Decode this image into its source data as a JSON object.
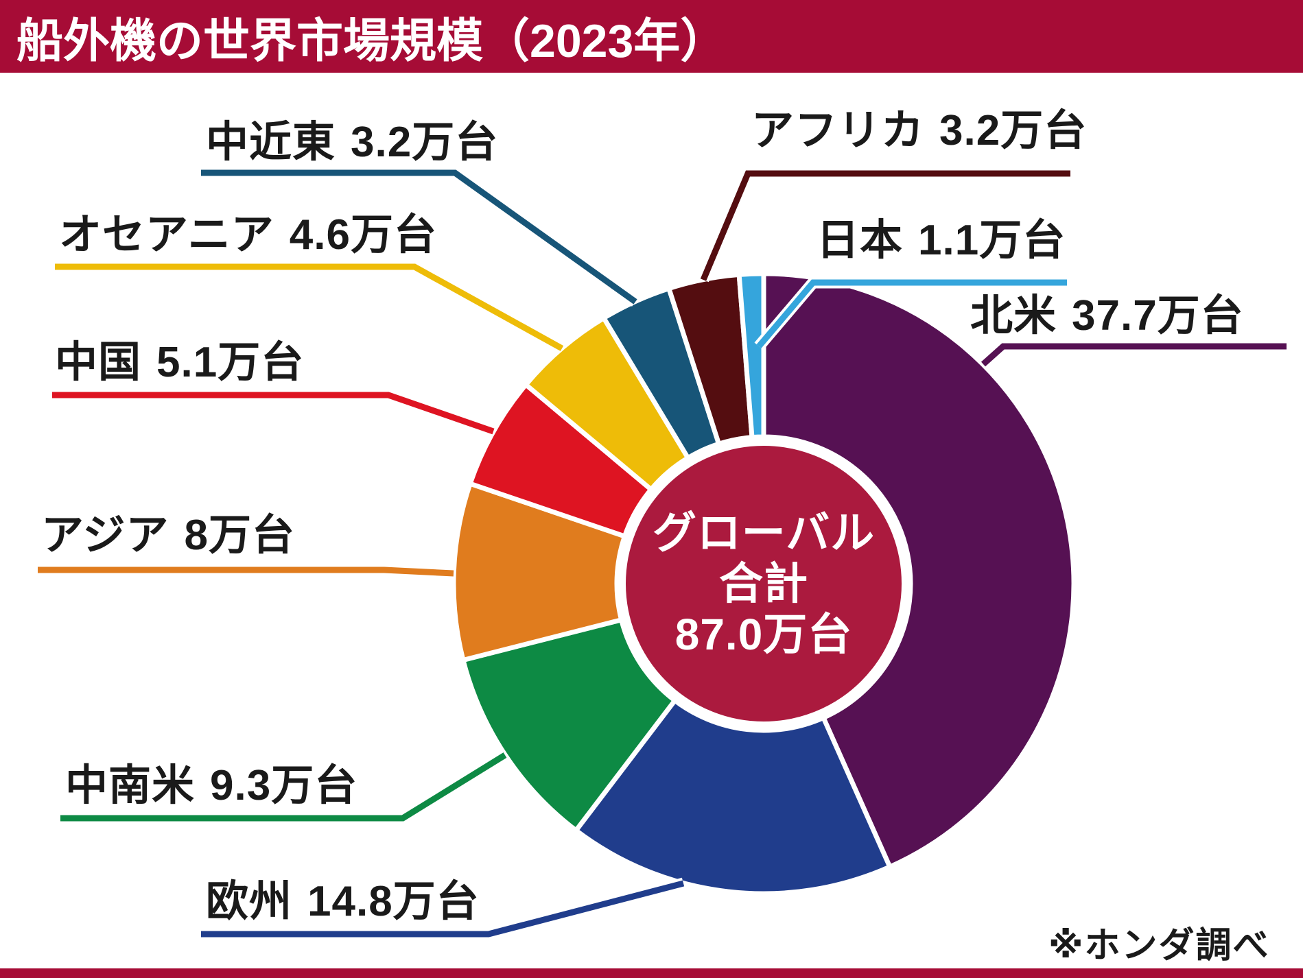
{
  "title": "船外機の世界市場規模（2023年）",
  "note": "※ホンダ調べ",
  "center": {
    "line1": "グローバル",
    "line2": "合計",
    "line3": "87.0万台"
  },
  "accent_color": "#A60C36",
  "center_circle_color": "#AB1A3E",
  "label_text_color": "#1a1a1a",
  "chart_data": {
    "type": "pie",
    "subtype": "donut",
    "title": "船外機の世界市場規模（2023年）",
    "unit": "万台",
    "total_label": "グローバル合計",
    "total_value": 87.0,
    "start_angle_deg": 0,
    "direction": "clockwise",
    "categories": [
      "北米",
      "欧州",
      "中南米",
      "アジア",
      "中国",
      "オセアニア",
      "中近東",
      "アフリカ",
      "日本"
    ],
    "values": [
      37.7,
      14.8,
      9.3,
      8,
      5.1,
      4.6,
      3.2,
      3.2,
      1.1
    ],
    "amount_labels": [
      "37.7万台",
      "14.8万台",
      "9.3万台",
      "8万台",
      "5.1万台",
      "4.6万台",
      "3.2万台",
      "3.2万台",
      "1.1万台"
    ],
    "colors": [
      "#561153",
      "#203D8C",
      "#0D8A44",
      "#E07C1E",
      "#DE1422",
      "#EEBC08",
      "#175578",
      "#540D10",
      "#35A5DC"
    ],
    "legend": "none",
    "source": "※ホンダ調べ"
  }
}
